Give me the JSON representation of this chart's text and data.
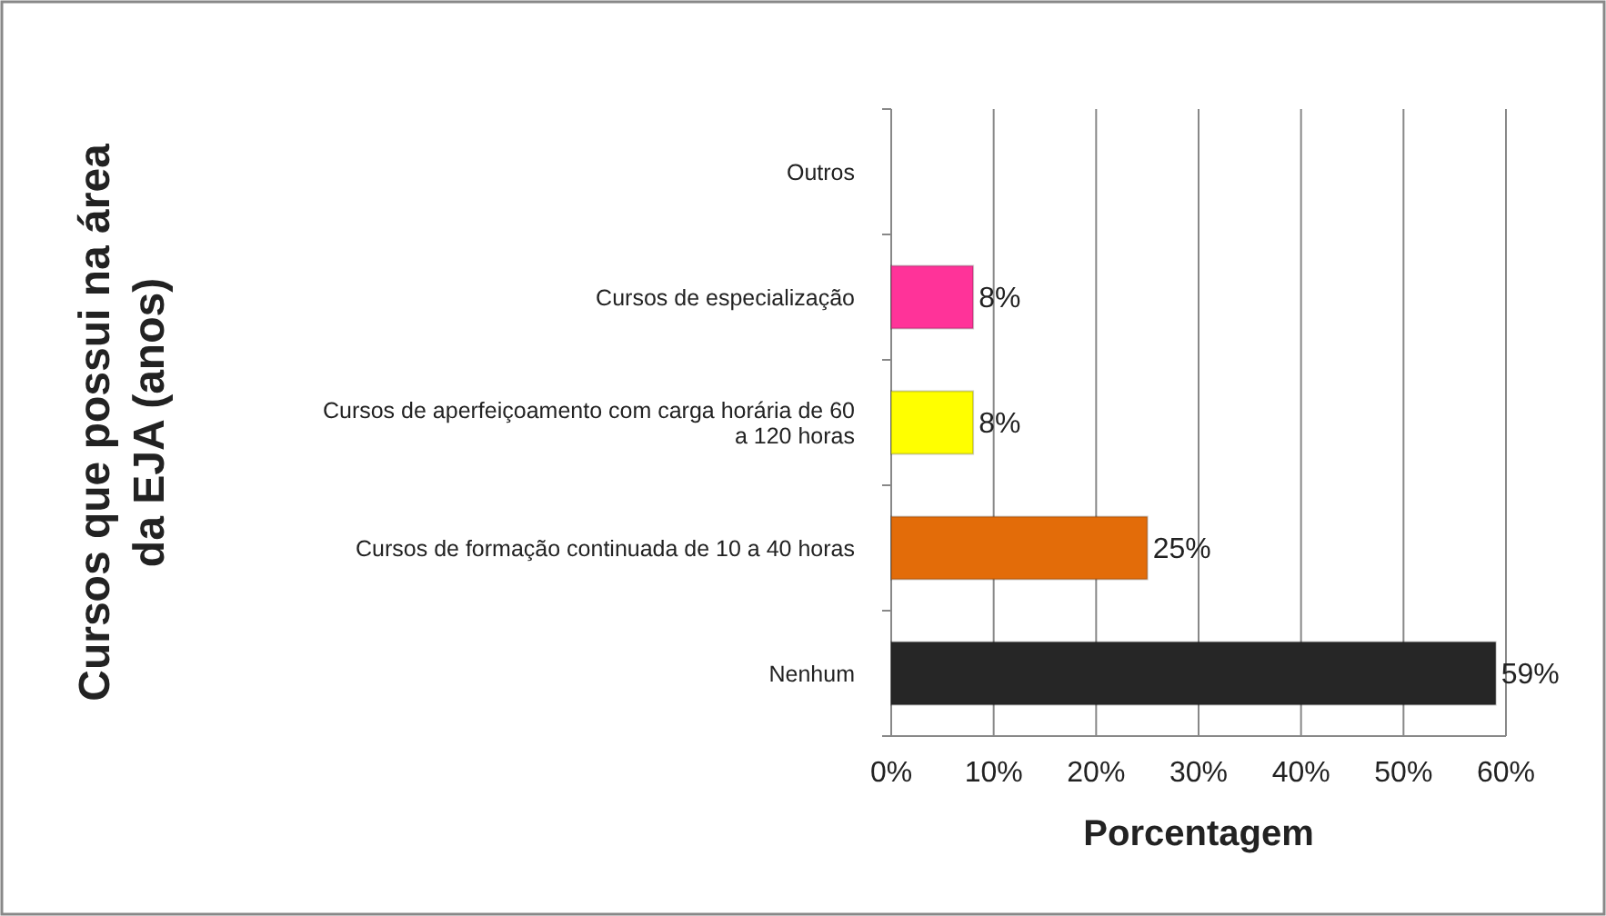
{
  "chart_data": {
    "type": "bar",
    "orientation": "horizontal",
    "xlabel": "Porcentagem",
    "ylabel": "Cursos que possui na área da EJA (anos)",
    "categories": [
      "Outros",
      "Cursos de especialização",
      "Cursos de aperfeiçoamento com carga horária de 60 a 120 horas",
      "Cursos de formação continuada de 10 a 40 horas",
      "Nenhum"
    ],
    "values": [
      null,
      8,
      8,
      25,
      59
    ],
    "colors": [
      null,
      "#ff3399",
      "#ffff00",
      "#e36c09",
      "#262626"
    ],
    "value_labels": [
      null,
      "8%",
      "8%",
      "25%",
      "59%"
    ],
    "xlim": [
      0,
      60
    ],
    "xticks": [
      {
        "value": 0,
        "label": "0%"
      },
      {
        "value": 10,
        "label": "10%"
      },
      {
        "value": 20,
        "label": "20%"
      },
      {
        "value": 30,
        "label": "30%"
      },
      {
        "value": 40,
        "label": "40%"
      },
      {
        "value": 50,
        "label": "50%"
      },
      {
        "value": 60,
        "label": "60%"
      }
    ],
    "grid": "x"
  }
}
